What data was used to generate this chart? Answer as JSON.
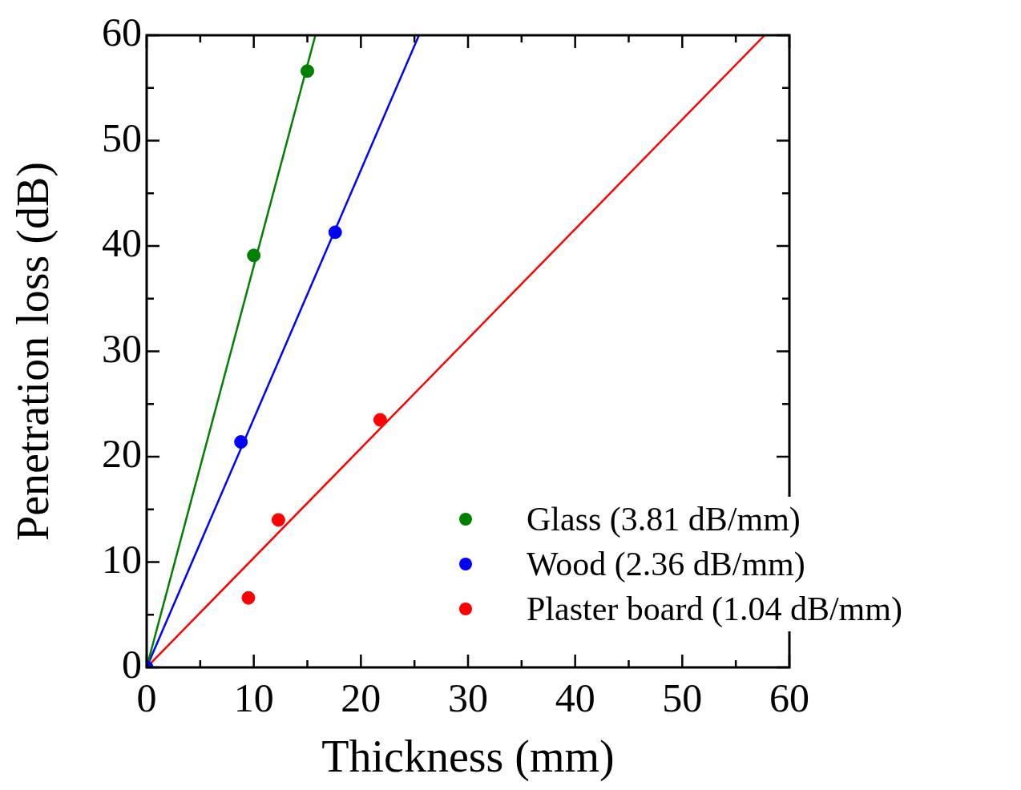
{
  "chart_data": {
    "type": "scatter",
    "xlabel": "Thickness (mm)",
    "ylabel": "Penetration loss (dB)",
    "xlim": [
      0,
      60
    ],
    "ylim": [
      0,
      60
    ],
    "xticks": [
      0,
      {
        "value": 5,
        "label": null
      },
      10,
      {
        "value": 15,
        "label": null
      },
      20,
      {
        "value": 25,
        "label": null
      },
      30,
      {
        "value": 35,
        "label": null
      },
      40,
      {
        "value": 45,
        "label": null
      },
      50,
      {
        "value": 55,
        "label": null
      },
      60
    ],
    "yticks": [
      0,
      {
        "value": 5,
        "label": null
      },
      10,
      {
        "value": 15,
        "label": null
      },
      20,
      {
        "value": 25,
        "label": null
      },
      30,
      {
        "value": 35,
        "label": null
      },
      40,
      {
        "value": 45,
        "label": null
      },
      50,
      {
        "value": 55,
        "label": null
      },
      60
    ],
    "legend": "bottom right",
    "marker": "circle",
    "series": [
      {
        "name": "Glass (3.81 dB/mm)",
        "color": "#008000",
        "x": [
          10.0,
          15.0
        ],
        "values": [
          39.1,
          56.6
        ]
      },
      {
        "name": "Wood (2.36 dB/mm)",
        "color": "#0000ff",
        "x": [
          0,
          8.8,
          17.6
        ],
        "values": [
          0,
          21.4,
          41.3
        ]
      },
      {
        "name": "Plaster board (1.04 dB/mm)",
        "color": "#ff0000",
        "x": [
          9.5,
          12.3,
          21.8
        ],
        "values": [
          6.6,
          14.0,
          23.5
        ]
      },
      {
        "type": "line",
        "marker": "none",
        "color": "#008000",
        "x": [
          0,
          15.75
        ],
        "values": [
          0,
          60
        ]
      },
      {
        "type": "line",
        "marker": "none",
        "color": "#0000ff",
        "x": [
          0,
          25.42
        ],
        "values": [
          0,
          60
        ]
      },
      {
        "type": "line",
        "marker": "none",
        "color": "#ff0000",
        "x": [
          0,
          57.69
        ],
        "values": [
          0,
          60
        ]
      }
    ]
  }
}
